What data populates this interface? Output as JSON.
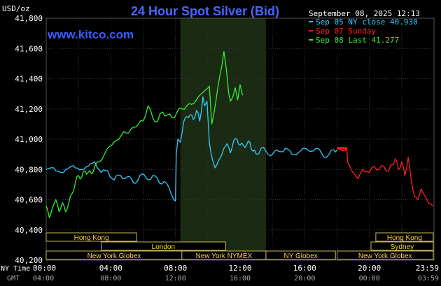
{
  "chart_data": {
    "type": "line",
    "title": "24 Hour Spot Silver (Bid)",
    "watermark": "www.kitco.com",
    "ylabel": "USD/oz",
    "timestamp": "September 08, 2025 12:13",
    "ylim": [
      40.2,
      41.8
    ],
    "xlim": [
      0,
      24
    ],
    "grid": true,
    "legend_position": "top-right",
    "y_ticks": [
      "41,800",
      "41,600",
      "41,400",
      "41,200",
      "41,000",
      "40,800",
      "40,600",
      "40,400",
      "40,200"
    ],
    "x_axis": {
      "row1_label": "NY Time",
      "row2_label": "GMT",
      "ny_ticks": [
        "00:00",
        "04:00",
        "08:00",
        "12:00",
        "16:00",
        "20:00",
        "23:59"
      ],
      "gmt_ticks": [
        "04:00",
        "08:00",
        "12:00",
        "16:00",
        "20:00",
        "00:00",
        "03:59"
      ]
    },
    "highlight_band": {
      "x_start": 8.3,
      "x_end": 13.6
    },
    "series": [
      {
        "name": "Sep 05 NY close 40.930",
        "color": "#33ccff",
        "x": [
          0,
          0.6,
          1.2,
          1.8,
          2.2,
          2.6,
          3.0,
          3.4,
          3.8,
          4.2,
          4.6,
          5.0,
          5.4,
          5.8,
          6.2,
          6.6,
          7.0,
          7.3,
          7.6,
          7.9,
          8.0,
          8.05,
          8.15,
          8.3,
          8.5,
          8.7,
          8.9,
          9.1,
          9.3,
          9.5,
          9.7,
          9.8,
          9.95,
          10.1,
          10.3,
          10.45,
          10.6,
          10.8,
          11.0,
          11.2,
          11.4,
          11.6,
          11.8,
          12.0,
          12.2,
          12.4,
          12.6,
          12.8,
          13.0,
          13.3,
          13.6,
          14.0,
          14.4,
          14.8,
          15.2,
          15.6,
          16.0,
          16.4,
          16.8,
          17.2,
          17.5,
          17.8,
          18.0
        ],
        "values": [
          40.8,
          40.79,
          40.8,
          40.81,
          40.8,
          40.82,
          40.85,
          40.78,
          40.79,
          40.73,
          40.76,
          40.75,
          40.71,
          40.76,
          40.74,
          40.76,
          40.71,
          40.72,
          40.68,
          40.6,
          40.59,
          40.9,
          41.0,
          40.98,
          41.11,
          41.15,
          41.16,
          41.13,
          41.19,
          41.12,
          41.28,
          41.22,
          41.25,
          40.98,
          40.86,
          40.81,
          40.84,
          40.88,
          40.94,
          40.97,
          40.91,
          40.99,
          41.0,
          40.96,
          40.96,
          40.96,
          40.98,
          40.92,
          40.9,
          40.94,
          40.92,
          40.9,
          40.92,
          40.94,
          40.9,
          40.91,
          40.94,
          40.92,
          40.94,
          40.88,
          40.9,
          40.93,
          40.93
        ]
      },
      {
        "name": "Sep 07 Sunday",
        "color": "#ff2020",
        "x": [
          18.0,
          18.6,
          18.65,
          19.0,
          19.3,
          19.6,
          20.0,
          20.3,
          20.6,
          20.9,
          21.2,
          21.4,
          21.6,
          21.8,
          22.0,
          22.2,
          22.4,
          22.6,
          22.8,
          23.0,
          23.2,
          23.4,
          23.6,
          23.8,
          23.95
        ],
        "values": [
          40.94,
          40.94,
          40.85,
          40.78,
          40.74,
          40.8,
          40.78,
          40.82,
          40.8,
          40.82,
          40.79,
          40.83,
          40.87,
          40.8,
          40.85,
          40.76,
          40.88,
          40.72,
          40.62,
          40.6,
          40.67,
          40.63,
          40.59,
          40.57,
          40.56
        ]
      },
      {
        "name": "Sep 08 Last 41.277",
        "color": "#33ee33",
        "x": [
          0,
          0.2,
          0.4,
          0.6,
          0.8,
          1.0,
          1.2,
          1.4,
          1.6,
          1.8,
          2.0,
          2.2,
          2.4,
          2.6,
          2.8,
          3.0,
          3.3,
          3.6,
          3.9,
          4.2,
          4.5,
          4.8,
          5.1,
          5.4,
          5.7,
          6.0,
          6.3,
          6.6,
          6.9,
          7.2,
          7.5,
          7.8,
          8.1,
          8.4,
          8.7,
          9.0,
          9.3,
          9.6,
          9.9,
          10.1,
          10.25,
          10.5,
          10.75,
          11.0,
          11.15,
          11.3,
          11.4,
          11.55,
          11.7,
          11.85,
          12.0,
          12.15
        ],
        "values": [
          40.56,
          40.48,
          40.55,
          40.6,
          40.52,
          40.58,
          40.52,
          40.58,
          40.64,
          40.71,
          40.76,
          40.75,
          40.79,
          40.78,
          40.77,
          40.82,
          40.85,
          40.9,
          40.95,
          40.98,
          41.0,
          41.05,
          41.04,
          41.08,
          41.1,
          41.12,
          41.22,
          41.14,
          41.12,
          41.18,
          41.16,
          41.14,
          41.18,
          41.2,
          41.22,
          41.23,
          41.26,
          41.3,
          41.33,
          41.35,
          41.1,
          41.25,
          41.42,
          41.58,
          41.46,
          41.3,
          41.25,
          41.28,
          41.34,
          41.26,
          41.36,
          41.29
        ]
      }
    ],
    "market_rows": [
      [
        {
          "label": "Hong Kong",
          "start": 0,
          "end": 5.6
        },
        {
          "label": "Hong Kong",
          "start": 20.4,
          "end": 23.95
        }
      ],
      [
        {
          "label": "London",
          "start": 3.4,
          "end": 11.1
        },
        {
          "label": "Sydney",
          "start": 20.1,
          "end": 23.95
        }
      ],
      [
        {
          "label": "New York Globex",
          "start": 0,
          "end": 8.4
        },
        {
          "label": "New York NYMEX",
          "start": 8.4,
          "end": 13.6
        },
        {
          "label": "NY Globex",
          "start": 13.6,
          "end": 17.9
        },
        {
          "label": "New York Globex",
          "start": 18.0,
          "end": 23.95
        }
      ]
    ]
  }
}
